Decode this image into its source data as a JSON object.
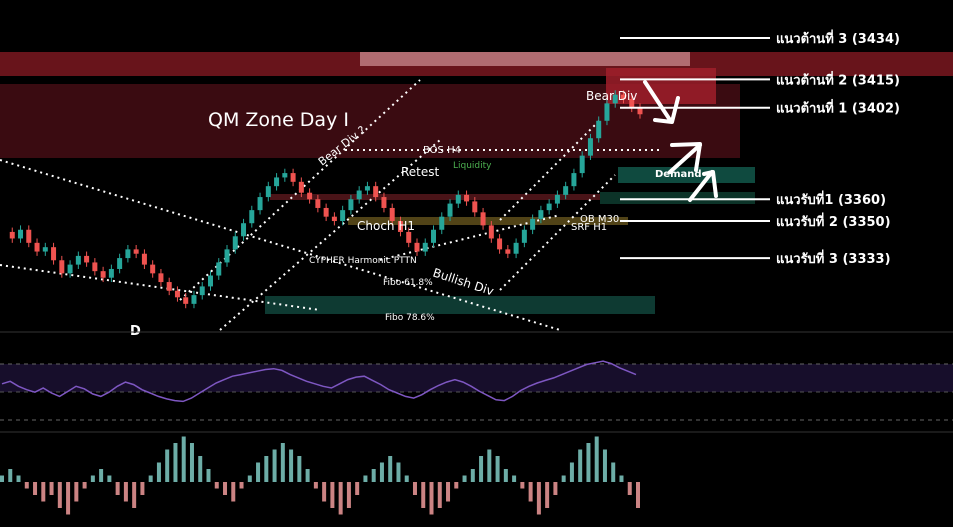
{
  "chart_data": {
    "type": "line",
    "title": "",
    "colors": {
      "background": "#000000",
      "resistance_zone": "#8b1a22",
      "qm_zone": "#4a0e14",
      "support_zone": "#0d3b33",
      "bull_candle": "#26a69a",
      "bear_candle": "#ef5350",
      "rsi_line": "#7e57c2",
      "level_line": "#ffffff"
    },
    "zones": {
      "qm_zone_label": "QM Zone Day I",
      "demand_label": "Demand",
      "fibo_618_label": "Fibo 61.8%",
      "fibo_786_label": "Fibo 78.6%"
    },
    "levels": [
      {
        "label": "แนวต้านที่ 3 (3434)",
        "price": 3434
      },
      {
        "label": "แนวต้านที่ 2 (3415)",
        "price": 3415
      },
      {
        "label": "แนวต้านที่ 1 (3402)",
        "price": 3402
      },
      {
        "label": "แนวรับที่1 (3360)",
        "price": 3360
      },
      {
        "label": "แนวรับที่ 2 (3350)",
        "price": 3350
      },
      {
        "label": "แนวรับที่ 3 (3333)",
        "price": 3333
      }
    ],
    "annotations": {
      "bear_div_top": "Bear Div",
      "bear_div_q": "Bear Div ?",
      "bos_h4": "BOS H4",
      "liquidity": "Liquidity",
      "retest": "Retest",
      "choch_h1": "Choch H1",
      "ob_m30": "OB M30",
      "srf_h1": "SRF H1",
      "cypher": "CYPHER Harmonic PTTN",
      "bullish_div": "Bullish Div",
      "partial_left": "D"
    },
    "price_series": [
      3345,
      3342,
      3346,
      3340,
      3336,
      3338,
      3332,
      3326,
      3330,
      3334,
      3331,
      3327,
      3324,
      3328,
      3333,
      3337,
      3335,
      3330,
      3326,
      3322,
      3318,
      3315,
      3312,
      3316,
      3320,
      3325,
      3331,
      3337,
      3343,
      3349,
      3355,
      3361,
      3366,
      3370,
      3372,
      3368,
      3363,
      3360,
      3356,
      3352,
      3350,
      3355,
      3360,
      3364,
      3366,
      3361,
      3356,
      3350,
      3345,
      3340,
      3336,
      3340,
      3346,
      3352,
      3358,
      3362,
      3359,
      3354,
      3348,
      3342,
      3337,
      3335,
      3340,
      3346,
      3351,
      3355,
      3358,
      3362,
      3366,
      3372,
      3380,
      3388,
      3396,
      3404,
      3408,
      3406,
      3402,
      3399
    ],
    "rsi_series": [
      55,
      58,
      52,
      48,
      45,
      50,
      44,
      40,
      46,
      52,
      49,
      43,
      40,
      45,
      52,
      57,
      54,
      48,
      44,
      40,
      37,
      35,
      34,
      38,
      44,
      50,
      56,
      60,
      64,
      66,
      68,
      70,
      72,
      73,
      71,
      66,
      62,
      58,
      55,
      52,
      50,
      55,
      60,
      63,
      64,
      59,
      54,
      48,
      44,
      40,
      38,
      42,
      48,
      53,
      57,
      60,
      57,
      52,
      46,
      41,
      36,
      35,
      40,
      47,
      52,
      56,
      59,
      62,
      66,
      70,
      74,
      78,
      80,
      82,
      79,
      74,
      70,
      66
    ],
    "histogram_series": [
      1,
      2,
      1,
      -1,
      -2,
      -3,
      -2,
      -4,
      -5,
      -3,
      -1,
      1,
      2,
      1,
      -2,
      -3,
      -4,
      -2,
      1,
      3,
      5,
      6,
      7,
      6,
      4,
      2,
      -1,
      -2,
      -3,
      -1,
      1,
      3,
      4,
      5,
      6,
      5,
      4,
      2,
      -1,
      -3,
      -4,
      -5,
      -4,
      -2,
      1,
      2,
      3,
      4,
      3,
      1,
      -2,
      -4,
      -5,
      -4,
      -3,
      -1,
      1,
      2,
      4,
      5,
      4,
      2,
      1,
      -1,
      -3,
      -5,
      -4,
      -2,
      1,
      3,
      5,
      6,
      7,
      5,
      3,
      1,
      -2,
      -4
    ]
  }
}
